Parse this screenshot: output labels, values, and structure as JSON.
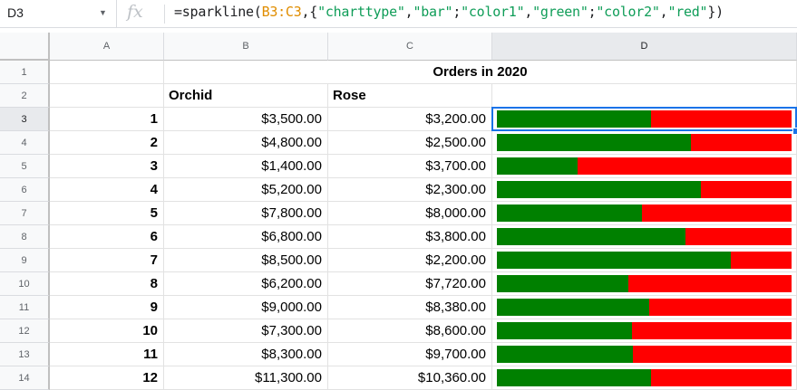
{
  "formula_bar": {
    "name_box": "D3",
    "fx_label": "fx",
    "formula_prefix": "=sparkline(",
    "formula_ref": "B3:C3",
    "formula_part1": ",{",
    "s1": "\"charttype\"",
    "c1": ",",
    "s2": "\"bar\"",
    "c2": ";",
    "s3": "\"color1\"",
    "c3": ",",
    "s4": "\"green\"",
    "c4": ";",
    "s5": "\"color2\"",
    "c5": ",",
    "s6": "\"red\"",
    "formula_end": "})"
  },
  "columns": [
    "A",
    "B",
    "C",
    "D"
  ],
  "selected_column": "D",
  "selected_row": "3",
  "title": "Orders in 2020",
  "headers": {
    "b": "Orchid",
    "c": "Rose"
  },
  "rows": [
    {
      "row": "3",
      "a": "1",
      "b": "$3,500.00",
      "c": "$3,200.00",
      "orchid": 3500,
      "rose": 3200
    },
    {
      "row": "4",
      "a": "2",
      "b": "$4,800.00",
      "c": "$2,500.00",
      "orchid": 4800,
      "rose": 2500
    },
    {
      "row": "5",
      "a": "3",
      "b": "$1,400.00",
      "c": "$3,700.00",
      "orchid": 1400,
      "rose": 3700
    },
    {
      "row": "6",
      "a": "4",
      "b": "$5,200.00",
      "c": "$2,300.00",
      "orchid": 5200,
      "rose": 2300
    },
    {
      "row": "7",
      "a": "5",
      "b": "$7,800.00",
      "c": "$8,000.00",
      "orchid": 7800,
      "rose": 8000
    },
    {
      "row": "8",
      "a": "6",
      "b": "$6,800.00",
      "c": "$3,800.00",
      "orchid": 6800,
      "rose": 3800
    },
    {
      "row": "9",
      "a": "7",
      "b": "$8,500.00",
      "c": "$2,200.00",
      "orchid": 8500,
      "rose": 2200
    },
    {
      "row": "10",
      "a": "8",
      "b": "$6,200.00",
      "c": "$7,720.00",
      "orchid": 6200,
      "rose": 7720
    },
    {
      "row": "11",
      "a": "9",
      "b": "$9,000.00",
      "c": "$8,380.00",
      "orchid": 9000,
      "rose": 8380
    },
    {
      "row": "12",
      "a": "10",
      "b": "$7,300.00",
      "c": "$8,600.00",
      "orchid": 7300,
      "rose": 8600
    },
    {
      "row": "13",
      "a": "11",
      "b": "$8,300.00",
      "c": "$9,700.00",
      "orchid": 8300,
      "rose": 9700
    },
    {
      "row": "14",
      "a": "12",
      "b": "$11,300.00",
      "c": "$10,360.00",
      "orchid": 11300,
      "rose": 10360
    }
  ],
  "header_rows": [
    "1",
    "2"
  ],
  "sparkline": {
    "color1": "#008000",
    "color2": "#ff0000"
  }
}
